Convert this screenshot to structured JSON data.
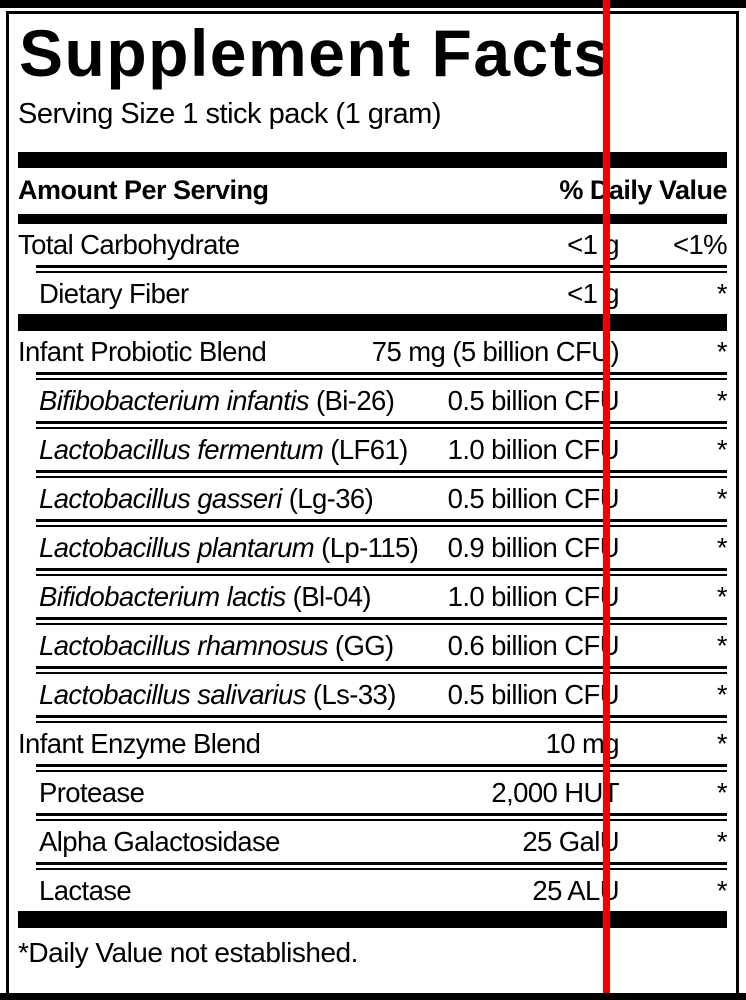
{
  "label": {
    "title": "Supplement Facts",
    "serving_size": "Serving Size 1 stick pack (1 gram)",
    "header": {
      "amount_per_serving": "Amount Per Serving",
      "daily_value": "% Daily Value"
    },
    "rows": [
      {
        "name_italic": "",
        "name_plain": "Total Carbohydrate",
        "amount": "<1 g",
        "dv": "<1%"
      },
      {
        "name_italic": "",
        "name_plain": "Dietary Fiber",
        "amount": "<1 g",
        "dv": "*"
      },
      {
        "name_italic": "",
        "name_plain": "Infant Probiotic Blend",
        "amount": "75 mg (5 billion CFU)",
        "dv": "*"
      },
      {
        "name_italic": "Bifibobacterium infantis",
        "name_plain": " (Bi-26)",
        "amount": "0.5 billion CFU",
        "dv": "*"
      },
      {
        "name_italic": "Lactobacillus fermentum",
        "name_plain": " (LF61)",
        "amount": "1.0 billion CFU",
        "dv": "*"
      },
      {
        "name_italic": "Lactobacillus gasseri",
        "name_plain": " (Lg-36)",
        "amount": "0.5 billion CFU",
        "dv": "*"
      },
      {
        "name_italic": "Lactobacillus plantarum",
        "name_plain": " (Lp-115)",
        "amount": "0.9 billion CFU",
        "dv": "*"
      },
      {
        "name_italic": "Bifidobacterium lactis",
        "name_plain": " (Bl-04)",
        "amount": "1.0 billion CFU",
        "dv": "*"
      },
      {
        "name_italic": "Lactobacillus rhamnosus",
        "name_plain": " (GG)",
        "amount": "0.6 billion CFU",
        "dv": "*"
      },
      {
        "name_italic": "Lactobacillus salivarius",
        "name_plain": " (Ls-33)",
        "amount": "0.5 billion CFU",
        "dv": "*"
      },
      {
        "name_italic": "",
        "name_plain": "Infant Enzyme Blend",
        "amount": "10 mg",
        "dv": "*"
      },
      {
        "name_italic": "",
        "name_plain": "Protease",
        "amount": "2,000 HUT",
        "dv": "*"
      },
      {
        "name_italic": "",
        "name_plain": "Alpha Galactosidase",
        "amount": "25 GalU",
        "dv": "*"
      },
      {
        "name_italic": "",
        "name_plain": "Lactase",
        "amount": "25 ALU",
        "dv": "*"
      }
    ],
    "footnote": "*Daily Value not established."
  },
  "overlay": {
    "red_line_color": "#f20000"
  },
  "colors": {
    "text": "#000000",
    "background": "#ffffff"
  }
}
